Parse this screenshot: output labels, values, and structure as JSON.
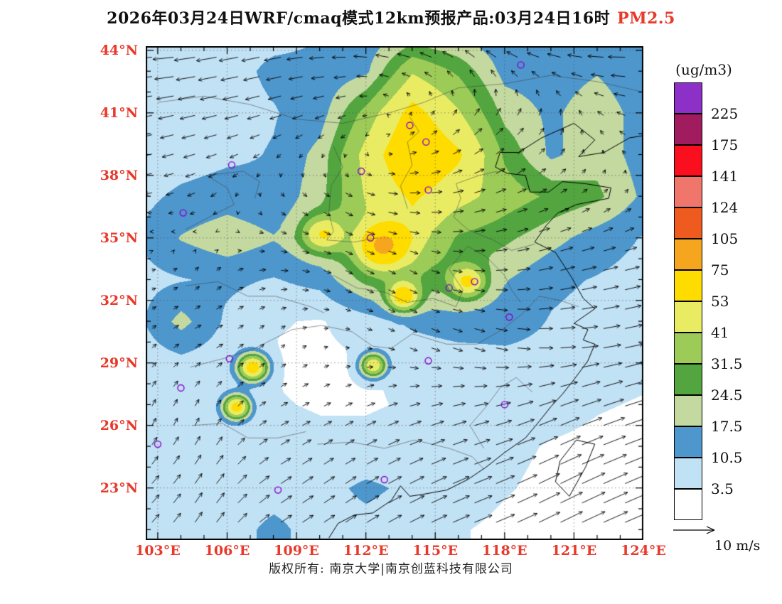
{
  "title": {
    "main": "2026年03月24日WRF/cmaq模式12km预报产品:03月24日16时",
    "pollutant": "PM2.5",
    "pollutant_color": "#E8392B"
  },
  "footer": {
    "text": "版权所有: 南京大学|南京创蓝科技有限公司"
  },
  "legend": {
    "unit_label": "(ug/m3)",
    "labels": [
      "225",
      "175",
      "141",
      "124",
      "105",
      "75",
      "53",
      "41",
      "31.5",
      "24.5",
      "17.5",
      "10.5",
      "3.5"
    ],
    "colors_top_to_bottom": [
      "#8C30C8",
      "#A11C5E",
      "#FA0F1E",
      "#F0766B",
      "#EF5A1E",
      "#F5A61E",
      "#FFDC00",
      "#E9EC63",
      "#9CCB58",
      "#53A63F",
      "#C3D9A0",
      "#4E97CD",
      "#C1E1F5",
      "#FFFFFF"
    ]
  },
  "axes": {
    "lat_tick_labels": [
      "44°N",
      "41°N",
      "38°N",
      "35°N",
      "32°N",
      "29°N",
      "26°N",
      "23°N"
    ],
    "lat_tick_values": [
      44,
      41,
      38,
      35,
      32,
      29,
      26,
      23
    ],
    "lon_tick_labels": [
      "103°E",
      "106°E",
      "109°E",
      "112°E",
      "115°E",
      "118°E",
      "121°E",
      "124°E"
    ],
    "lon_tick_values": [
      103,
      106,
      109,
      112,
      115,
      118,
      121,
      124
    ],
    "tick_label_color": "#E8392B",
    "lon_range": [
      102.48,
      124.0
    ],
    "lat_range": [
      20.5,
      44.2
    ]
  },
  "wind_scale": {
    "label": "10 m/s",
    "speed_m_s": 10
  },
  "chart_data": {
    "type": "heatmap",
    "title": "2026年03月24日WRF/cmaq模式12km预报产品:03月24日16时 PM2.5",
    "units": "ug/m3",
    "levels": [
      3.5,
      10.5,
      17.5,
      24.5,
      31.5,
      41,
      53,
      75,
      105,
      124,
      141,
      175,
      225
    ],
    "grid": {
      "lons": [
        102,
        104,
        106,
        108,
        110,
        112,
        114,
        116,
        118,
        120,
        122,
        124
      ],
      "lats": [
        45,
        43,
        41,
        39,
        37,
        35,
        33,
        31,
        29,
        27,
        25,
        23,
        21
      ],
      "values": [
        [
          6,
          6,
          8,
          8,
          10,
          12,
          16,
          14,
          12,
          11,
          12,
          10
        ],
        [
          6,
          6,
          8,
          12,
          12,
          16,
          40,
          30,
          15,
          14,
          17,
          12
        ],
        [
          5,
          6,
          8,
          10,
          14,
          35,
          58,
          42,
          22,
          16,
          22,
          14
        ],
        [
          6,
          7,
          9,
          11,
          20,
          45,
          67,
          55,
          30,
          16,
          22,
          14
        ],
        [
          8,
          12,
          14,
          12,
          22,
          42,
          55,
          45,
          36,
          30,
          26,
          16
        ],
        [
          10,
          18,
          22,
          18,
          24,
          36,
          46,
          30,
          26,
          20,
          14,
          10
        ],
        [
          8,
          10,
          12,
          10,
          13,
          26,
          30,
          25,
          18,
          12,
          10,
          8
        ],
        [
          8,
          20,
          9,
          4,
          3,
          7,
          12,
          15,
          14,
          10,
          8,
          6
        ],
        [
          6,
          8,
          6,
          3,
          2,
          3,
          5,
          6,
          8,
          8,
          6,
          5
        ],
        [
          5,
          6,
          6,
          4,
          3,
          3,
          4,
          5,
          6,
          6,
          4,
          3
        ],
        [
          6,
          6,
          7,
          6,
          5,
          5,
          6,
          6,
          5,
          3,
          2,
          1
        ],
        [
          5,
          6,
          7,
          8,
          8,
          12,
          9,
          7,
          4,
          2,
          1,
          1
        ],
        [
          6,
          7,
          8,
          12,
          8,
          8,
          6,
          4,
          2,
          1,
          1,
          1
        ]
      ]
    },
    "hotspots": [
      {
        "lon": 107.1,
        "lat": 28.8,
        "amp": 58,
        "r": 0.45
      },
      {
        "lon": 106.4,
        "lat": 26.9,
        "amp": 55,
        "r": 0.4
      },
      {
        "lon": 112.3,
        "lat": 28.9,
        "amp": 48,
        "r": 0.4
      },
      {
        "lon": 112.7,
        "lat": 34.6,
        "amp": 45,
        "r": 0.7
      },
      {
        "lon": 113.6,
        "lat": 32.2,
        "amp": 45,
        "r": 0.45
      },
      {
        "lon": 116.4,
        "lat": 32.9,
        "amp": 35,
        "r": 0.5
      },
      {
        "lon": 110.1,
        "lat": 35.2,
        "amp": 30,
        "r": 0.6
      }
    ],
    "wind": {
      "lons": [
        102,
        105,
        108,
        111,
        114,
        117,
        120,
        123
      ],
      "lats": [
        44,
        40.5,
        37,
        33.5,
        30,
        26.5,
        23
      ],
      "u": [
        [
          -6,
          -6,
          -5,
          -4,
          -4,
          -3,
          -4,
          -5
        ],
        [
          -4,
          -4,
          -3,
          -2,
          1,
          2,
          1,
          -2
        ],
        [
          -2,
          -2,
          1,
          2,
          3,
          3,
          2,
          1
        ],
        [
          1,
          1,
          2,
          2,
          2,
          3,
          4,
          4
        ],
        [
          1,
          2,
          1,
          1,
          2,
          3,
          4,
          5
        ],
        [
          1,
          1,
          2,
          2,
          3,
          4,
          5,
          6
        ],
        [
          2,
          2,
          3,
          3,
          4,
          5,
          6,
          7
        ]
      ],
      "v": [
        [
          0,
          -1,
          -1,
          0,
          1,
          2,
          1,
          0
        ],
        [
          -1,
          -1,
          -1,
          -1,
          1,
          2,
          2,
          1
        ],
        [
          0,
          -1,
          -1,
          -1,
          0,
          1,
          1,
          1
        ],
        [
          0,
          1,
          0,
          -1,
          -1,
          0,
          1,
          1
        ],
        [
          1,
          1,
          1,
          0,
          -1,
          -1,
          0,
          1
        ],
        [
          2,
          2,
          1,
          1,
          1,
          1,
          2,
          2
        ],
        [
          2,
          3,
          2,
          2,
          2,
          2,
          3,
          3
        ]
      ]
    },
    "stations": [
      [
        118.7,
        43.3
      ],
      [
        113.9,
        40.4
      ],
      [
        114.6,
        39.6
      ],
      [
        106.2,
        38.5
      ],
      [
        111.8,
        38.2
      ],
      [
        114.7,
        37.3
      ],
      [
        104.1,
        36.2
      ],
      [
        112.2,
        35.0
      ],
      [
        116.7,
        32.9
      ],
      [
        115.6,
        32.6
      ],
      [
        118.2,
        31.2
      ],
      [
        114.7,
        29.1
      ],
      [
        106.1,
        29.2
      ],
      [
        104.0,
        27.8
      ],
      [
        118.0,
        27.0
      ],
      [
        108.2,
        22.9
      ],
      [
        112.8,
        23.4
      ],
      [
        103.0,
        25.1
      ]
    ],
    "station_marker_color": "#8800CC",
    "arrow_color": "#000000"
  },
  "geo": {
    "coastline": [
      [
        124.5,
        40.0
      ],
      [
        123.4,
        39.8
      ],
      [
        122.3,
        39.1
      ],
      [
        121.2,
        38.9
      ],
      [
        121.9,
        39.7
      ],
      [
        121.0,
        40.5
      ],
      [
        120.4,
        40.2
      ],
      [
        119.6,
        39.8
      ],
      [
        118.6,
        39.1
      ],
      [
        117.8,
        39.1
      ],
      [
        117.6,
        38.4
      ],
      [
        118.1,
        38.1
      ],
      [
        118.9,
        38.0
      ],
      [
        119.1,
        37.2
      ],
      [
        119.9,
        37.2
      ],
      [
        120.5,
        37.7
      ],
      [
        121.5,
        37.6
      ],
      [
        122.6,
        37.4
      ],
      [
        122.5,
        36.9
      ],
      [
        121.1,
        36.6
      ],
      [
        120.3,
        36.2
      ],
      [
        119.8,
        35.6
      ],
      [
        119.3,
        34.8
      ],
      [
        120.2,
        34.3
      ],
      [
        120.9,
        33.1
      ],
      [
        121.4,
        32.1
      ],
      [
        121.9,
        31.6
      ],
      [
        121.0,
        30.9
      ],
      [
        121.6,
        30.6
      ],
      [
        121.4,
        30.1
      ],
      [
        121.9,
        29.9
      ],
      [
        121.6,
        29.1
      ],
      [
        121.0,
        28.2
      ],
      [
        120.5,
        27.5
      ],
      [
        120.0,
        26.9
      ],
      [
        119.5,
        26.2
      ],
      [
        118.9,
        25.4
      ],
      [
        118.0,
        24.7
      ],
      [
        117.2,
        24.0
      ],
      [
        116.4,
        23.4
      ],
      [
        115.5,
        22.9
      ],
      [
        114.5,
        22.7
      ],
      [
        113.9,
        22.6
      ],
      [
        113.5,
        23.1
      ],
      [
        113.1,
        22.4
      ],
      [
        112.3,
        21.8
      ],
      [
        111.5,
        21.7
      ],
      [
        110.8,
        21.3
      ],
      [
        110.4,
        20.6
      ]
    ],
    "islands": [
      [
        [
          121.1,
          25.3
        ],
        [
          121.9,
          25.1
        ],
        [
          121.5,
          24.0
        ],
        [
          120.8,
          22.6
        ],
        [
          120.2,
          23.3
        ],
        [
          120.4,
          24.3
        ],
        [
          121.1,
          25.3
        ]
      ]
    ],
    "boundaries": [
      [
        [
          103,
          41.5
        ],
        [
          105,
          41.8
        ],
        [
          107,
          41.4
        ],
        [
          109,
          40.7
        ],
        [
          111,
          40.5
        ],
        [
          113,
          41.0
        ],
        [
          114.5,
          41.5
        ],
        [
          116,
          42.2
        ],
        [
          118,
          42.4
        ],
        [
          120,
          42.8
        ],
        [
          122,
          42.5
        ],
        [
          124,
          42.0
        ]
      ],
      [
        [
          113.8,
          36.4
        ],
        [
          113.5,
          37.5
        ],
        [
          114.0,
          38.5
        ],
        [
          113.8,
          39.6
        ],
        [
          114.3,
          40.1
        ],
        [
          113.9,
          40.8
        ]
      ],
      [
        [
          110.6,
          39.4
        ],
        [
          111.0,
          38.4
        ],
        [
          110.5,
          37.5
        ],
        [
          110.4,
          36.2
        ],
        [
          110.6,
          35.3
        ],
        [
          110.3,
          34.9
        ],
        [
          111.5,
          34.8
        ],
        [
          112.5,
          35.0
        ]
      ],
      [
        [
          115.8,
          36.0
        ],
        [
          116.4,
          35.4
        ],
        [
          117.5,
          34.9
        ],
        [
          118.3,
          34.4
        ],
        [
          119.3,
          34.7
        ]
      ],
      [
        [
          115.8,
          36.0
        ],
        [
          116.1,
          36.9
        ],
        [
          115.9,
          37.6
        ],
        [
          116.9,
          38.0
        ],
        [
          117.7,
          38.2
        ]
      ],
      [
        [
          110.6,
          33.2
        ],
        [
          111.6,
          32.6
        ],
        [
          112.8,
          32.4
        ],
        [
          113.8,
          31.9
        ],
        [
          114.9,
          32.1
        ],
        [
          115.9,
          31.7
        ],
        [
          116.2,
          32.5
        ],
        [
          115.6,
          33.5
        ],
        [
          116.4,
          34.6
        ]
      ],
      [
        [
          104.4,
          28.8
        ],
        [
          105.8,
          29.2
        ],
        [
          107.2,
          29.7
        ],
        [
          108.8,
          30.6
        ],
        [
          110.1,
          30.8
        ],
        [
          111.4,
          30.5
        ],
        [
          112.3,
          29.8
        ],
        [
          113.1,
          29.7
        ],
        [
          114.0,
          30.4
        ],
        [
          115.5,
          29.9
        ],
        [
          116.8,
          29.9
        ],
        [
          117.9,
          30.6
        ],
        [
          118.7,
          31.3
        ],
        [
          119.5,
          32.2
        ],
        [
          120.4,
          32.0
        ],
        [
          121.2,
          31.7
        ]
      ],
      [
        [
          109.9,
          25.1
        ],
        [
          111.4,
          25.2
        ],
        [
          112.8,
          24.9
        ],
        [
          114.1,
          25.3
        ],
        [
          115.6,
          24.9
        ],
        [
          116.6,
          24.5
        ],
        [
          117.1,
          23.9
        ]
      ],
      [
        [
          104.2,
          32.7
        ],
        [
          105.6,
          32.9
        ],
        [
          106.9,
          32.2
        ],
        [
          108.1,
          32.2
        ],
        [
          109.6,
          31.7
        ],
        [
          110.2,
          31.4
        ]
      ],
      [
        [
          117.1,
          24.9
        ],
        [
          116.5,
          26.0
        ],
        [
          117.2,
          26.9
        ],
        [
          117.8,
          27.8
        ],
        [
          118.5,
          28.3
        ],
        [
          119.2,
          27.6
        ]
      ],
      [
        [
          104.2,
          35.4
        ],
        [
          105.4,
          36.1
        ],
        [
          106.3,
          36.6
        ],
        [
          106.0,
          37.4
        ],
        [
          105.1,
          38.0
        ],
        [
          106.7,
          38.2
        ],
        [
          107.4,
          37.7
        ],
        [
          107.2,
          36.9
        ]
      ],
      [
        [
          116.4,
          34.6
        ],
        [
          117.2,
          34.1
        ],
        [
          118.0,
          33.2
        ],
        [
          118.3,
          32.5
        ],
        [
          118.7,
          31.9
        ]
      ],
      [
        [
          104.5,
          26.0
        ],
        [
          105.8,
          26.1
        ],
        [
          106.9,
          25.4
        ],
        [
          108.2,
          25.4
        ],
        [
          109.4,
          25.7
        ]
      ]
    ]
  }
}
